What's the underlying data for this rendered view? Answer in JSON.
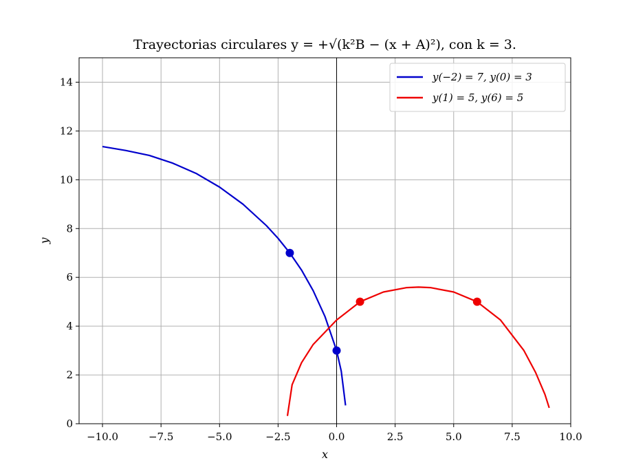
{
  "chart_data": {
    "type": "line",
    "title": "Trayectorias circulares y = +√(k²B − (x + A)²), con k = 3.",
    "xlabel": "x",
    "ylabel": "y",
    "xlim": [
      -11,
      10
    ],
    "ylim": [
      0,
      15
    ],
    "xticks": [
      -10.0,
      -7.5,
      -5.0,
      -2.5,
      0.0,
      2.5,
      5.0,
      7.5,
      10.0
    ],
    "xtick_labels": [
      "−10.0",
      "−7.5",
      "−5.0",
      "−2.5",
      "0.0",
      "2.5",
      "5.0",
      "7.5",
      "10.0"
    ],
    "yticks": [
      0,
      2,
      4,
      6,
      8,
      10,
      12,
      14
    ],
    "ytick_labels": [
      "0",
      "2",
      "4",
      "6",
      "8",
      "10",
      "12",
      "14"
    ],
    "grid": true,
    "legend_position": "top-right",
    "series": [
      {
        "name": "y(−2) = 7, y(0) = 3",
        "color": "#0000cc",
        "x": [
          -10.0,
          -9.0,
          -8.0,
          -7.0,
          -6.0,
          -5.0,
          -4.0,
          -3.0,
          -2.5,
          -2.0,
          -1.5,
          -1.0,
          -0.5,
          0.0,
          0.2,
          0.38
        ],
        "y": [
          11.36,
          11.2,
          11.0,
          10.68,
          10.26,
          9.7,
          9.0,
          8.12,
          7.6,
          7.0,
          6.3,
          5.45,
          4.4,
          3.0,
          2.15,
          0.75
        ],
        "points": [
          {
            "x": -2,
            "y": 7
          },
          {
            "x": 0,
            "y": 3
          }
        ]
      },
      {
        "name": "y(1) = 5, y(6) = 5",
        "color": "#ee0000",
        "x": [
          -2.1,
          -1.9,
          -1.5,
          -1.0,
          0.0,
          1.0,
          2.0,
          3.0,
          3.5,
          4.0,
          5.0,
          6.0,
          7.0,
          8.0,
          8.5,
          8.9,
          9.08
        ],
        "y": [
          0.32,
          1.6,
          2.5,
          3.25,
          4.25,
          5.0,
          5.4,
          5.58,
          5.6,
          5.58,
          5.4,
          5.0,
          4.25,
          3.0,
          2.1,
          1.2,
          0.65
        ],
        "points": [
          {
            "x": 1,
            "y": 5
          },
          {
            "x": 6,
            "y": 5
          }
        ]
      }
    ]
  }
}
